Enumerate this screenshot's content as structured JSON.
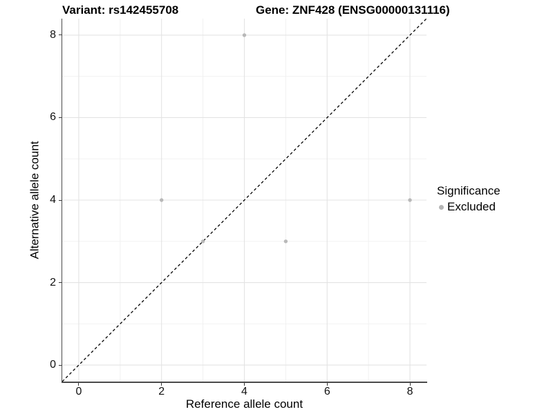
{
  "colors": {
    "point": "#b5b5b5",
    "grid_major": "#e3e3e3",
    "grid_minor": "#f0f0f0",
    "axis_line": "#4a4a4a",
    "reference_line": "#000000",
    "text": "#000000"
  },
  "chart_data": {
    "type": "scatter",
    "title_left": "Variant: rs142455708",
    "title_right": "Gene: ZNF428 (ENSG00000131116)",
    "xlabel": "Reference allele count",
    "ylabel": "Alternative allele count",
    "xlim": [
      -0.4,
      8.4
    ],
    "ylim": [
      -0.4,
      8.4
    ],
    "xticks": [
      0,
      2,
      4,
      6,
      8
    ],
    "yticks": [
      0,
      2,
      4,
      6,
      8
    ],
    "grid": "major+minor",
    "reference_line": {
      "style": "dashed",
      "slope": 1,
      "intercept": 0,
      "color": "#000000"
    },
    "series": [
      {
        "name": "Excluded",
        "color": "#b5b5b5",
        "points": [
          [
            4,
            8
          ],
          [
            2,
            4
          ],
          [
            3,
            3
          ],
          [
            5,
            3
          ],
          [
            8,
            4
          ]
        ]
      }
    ],
    "legend": {
      "title": "Significance",
      "position": "right",
      "items": [
        {
          "label": "Excluded",
          "color": "#b5b5b5"
        }
      ]
    }
  }
}
